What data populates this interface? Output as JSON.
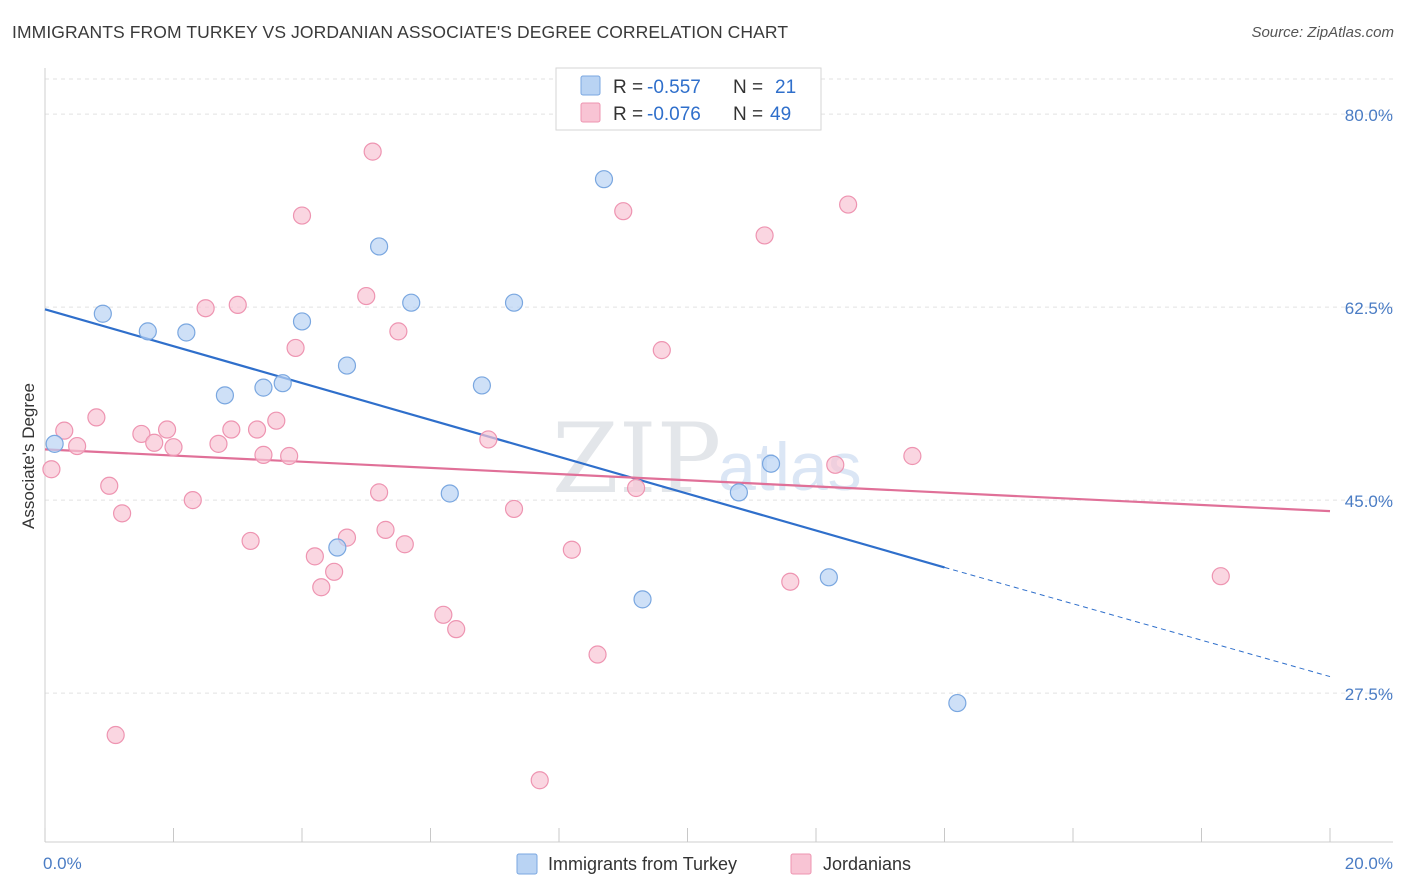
{
  "title": "IMMIGRANTS FROM TURKEY VS JORDANIAN ASSOCIATE'S DEGREE CORRELATION CHART",
  "source": "Source: ZipAtlas.com",
  "watermark": {
    "zip": "ZIP",
    "atlas": "atlas"
  },
  "colors": {
    "turkey_fill": "#b9d3f3",
    "turkey_stroke": "#7aa7e0",
    "turkey_line": "#2f6fcb",
    "jordan_fill": "#f8c4d4",
    "jordan_stroke": "#ee94b1",
    "jordan_line": "#e07098",
    "grid": "#e2e2e2",
    "tick_text": "#4a7cc4"
  },
  "legend": {
    "rows": [
      {
        "r_label": "R =",
        "r_value": "-0.557",
        "n_label": "N =",
        "n_value": "21"
      },
      {
        "r_label": "R =",
        "r_value": "-0.076",
        "n_label": "N =",
        "n_value": "49"
      }
    ]
  },
  "chart_data": {
    "type": "scatter",
    "title": "IMMIGRANTS FROM TURKEY VS JORDANIAN ASSOCIATE'S DEGREE CORRELATION CHART",
    "xlabel": "",
    "ylabel": "Associate's Degree",
    "xlim": [
      0,
      20
    ],
    "ylim": [
      14,
      84
    ],
    "x_tick_labels": [
      {
        "value": 0,
        "label": "0.0%"
      },
      {
        "value": 20,
        "label": "20.0%"
      }
    ],
    "y_tick_labels": [
      {
        "value": 80,
        "label": "80.0%"
      },
      {
        "value": 62.5,
        "label": "62.5%"
      },
      {
        "value": 45,
        "label": "45.0%"
      },
      {
        "value": 27.5,
        "label": "27.5%"
      }
    ],
    "grid": true,
    "legend_position": "top-center",
    "series": [
      {
        "name": "Immigrants from Turkey",
        "r": -0.557,
        "n": 21,
        "points": [
          {
            "x": 0.15,
            "y": 50.1
          },
          {
            "x": 0.9,
            "y": 61.9
          },
          {
            "x": 1.6,
            "y": 60.3
          },
          {
            "x": 2.2,
            "y": 60.2
          },
          {
            "x": 2.8,
            "y": 54.5
          },
          {
            "x": 3.4,
            "y": 55.2
          },
          {
            "x": 3.7,
            "y": 55.6
          },
          {
            "x": 4.0,
            "y": 61.2
          },
          {
            "x": 4.55,
            "y": 40.7
          },
          {
            "x": 4.7,
            "y": 57.2
          },
          {
            "x": 5.2,
            "y": 68.0
          },
          {
            "x": 5.7,
            "y": 62.9
          },
          {
            "x": 6.3,
            "y": 45.6
          },
          {
            "x": 6.8,
            "y": 55.4
          },
          {
            "x": 7.3,
            "y": 62.9
          },
          {
            "x": 8.7,
            "y": 74.1
          },
          {
            "x": 9.3,
            "y": 36.0
          },
          {
            "x": 10.8,
            "y": 45.7
          },
          {
            "x": 11.3,
            "y": 48.3
          },
          {
            "x": 12.2,
            "y": 38.0
          },
          {
            "x": 14.2,
            "y": 26.6
          }
        ],
        "trend": {
          "x0": 0,
          "y0": 62.3,
          "x1": 14.0,
          "y1": 38.9,
          "dash_to_x": 20,
          "dash_to_y": 29.0
        }
      },
      {
        "name": "Jordanians",
        "r": -0.076,
        "n": 49,
        "points": [
          {
            "x": 0.1,
            "y": 47.8
          },
          {
            "x": 0.3,
            "y": 51.3
          },
          {
            "x": 0.5,
            "y": 49.9
          },
          {
            "x": 0.8,
            "y": 52.5
          },
          {
            "x": 1.0,
            "y": 46.3
          },
          {
            "x": 1.2,
            "y": 43.8
          },
          {
            "x": 1.5,
            "y": 51.0
          },
          {
            "x": 1.7,
            "y": 50.2
          },
          {
            "x": 1.9,
            "y": 51.4
          },
          {
            "x": 2.0,
            "y": 49.8
          },
          {
            "x": 2.3,
            "y": 45.0
          },
          {
            "x": 2.5,
            "y": 62.4
          },
          {
            "x": 2.7,
            "y": 50.1
          },
          {
            "x": 2.9,
            "y": 51.4
          },
          {
            "x": 3.0,
            "y": 62.7
          },
          {
            "x": 3.2,
            "y": 41.3
          },
          {
            "x": 3.3,
            "y": 51.4
          },
          {
            "x": 3.4,
            "y": 49.1
          },
          {
            "x": 3.6,
            "y": 52.2
          },
          {
            "x": 3.8,
            "y": 49.0
          },
          {
            "x": 3.9,
            "y": 58.8
          },
          {
            "x": 4.0,
            "y": 70.8
          },
          {
            "x": 4.2,
            "y": 39.9
          },
          {
            "x": 4.3,
            "y": 37.1
          },
          {
            "x": 4.5,
            "y": 38.5
          },
          {
            "x": 4.7,
            "y": 41.6
          },
          {
            "x": 5.0,
            "y": 63.5
          },
          {
            "x": 5.1,
            "y": 76.6
          },
          {
            "x": 5.2,
            "y": 45.7
          },
          {
            "x": 5.3,
            "y": 42.3
          },
          {
            "x": 5.5,
            "y": 60.3
          },
          {
            "x": 5.6,
            "y": 41.0
          },
          {
            "x": 6.2,
            "y": 34.6
          },
          {
            "x": 6.4,
            "y": 33.3
          },
          {
            "x": 6.9,
            "y": 50.5
          },
          {
            "x": 7.3,
            "y": 44.2
          },
          {
            "x": 7.7,
            "y": 19.6
          },
          {
            "x": 8.2,
            "y": 40.5
          },
          {
            "x": 8.6,
            "y": 31.0
          },
          {
            "x": 9.0,
            "y": 71.2
          },
          {
            "x": 9.2,
            "y": 46.1
          },
          {
            "x": 9.6,
            "y": 58.6
          },
          {
            "x": 11.2,
            "y": 69.0
          },
          {
            "x": 11.6,
            "y": 37.6
          },
          {
            "x": 12.3,
            "y": 48.2
          },
          {
            "x": 12.5,
            "y": 71.8
          },
          {
            "x": 13.5,
            "y": 49.0
          },
          {
            "x": 18.3,
            "y": 38.1
          },
          {
            "x": 1.1,
            "y": 23.7
          }
        ],
        "trend": {
          "x0": 0,
          "y0": 49.6,
          "x1": 20,
          "y1": 44.0
        }
      }
    ]
  }
}
